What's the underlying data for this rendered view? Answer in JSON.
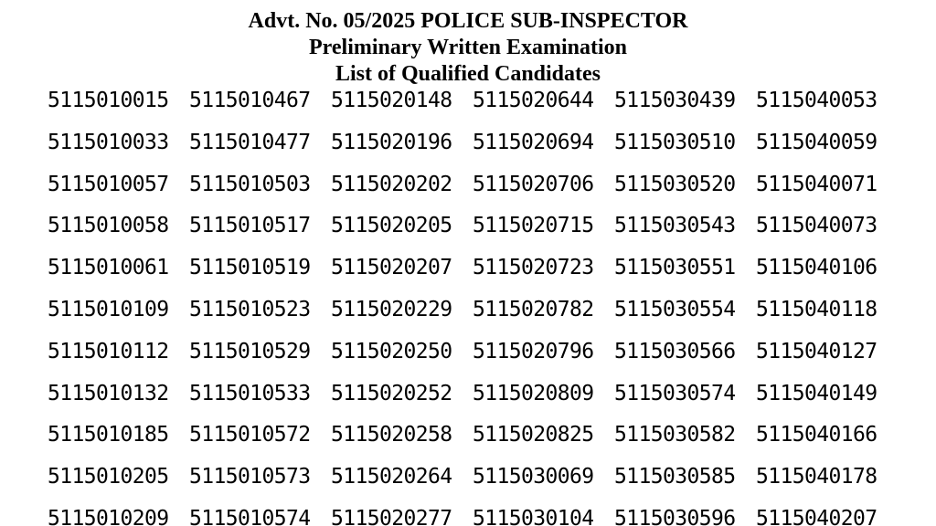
{
  "document": {
    "title_line1": "Advt. No. 05/2025 POLICE SUB-INSPECTOR",
    "title_line2": "Preliminary Written Examination",
    "title_line3": "List of Qualified Candidates",
    "text_color": "#000000",
    "background_color": "#ffffff"
  },
  "candidates": {
    "columns": 6,
    "rows": [
      [
        "5115010015",
        "5115010467",
        "5115020148",
        "5115020644",
        "5115030439",
        "5115040053"
      ],
      [
        "5115010033",
        "5115010477",
        "5115020196",
        "5115020694",
        "5115030510",
        "5115040059"
      ],
      [
        "5115010057",
        "5115010503",
        "5115020202",
        "5115020706",
        "5115030520",
        "5115040071"
      ],
      [
        "5115010058",
        "5115010517",
        "5115020205",
        "5115020715",
        "5115030543",
        "5115040073"
      ],
      [
        "5115010061",
        "5115010519",
        "5115020207",
        "5115020723",
        "5115030551",
        "5115040106"
      ],
      [
        "5115010109",
        "5115010523",
        "5115020229",
        "5115020782",
        "5115030554",
        "5115040118"
      ],
      [
        "5115010112",
        "5115010529",
        "5115020250",
        "5115020796",
        "5115030566",
        "5115040127"
      ],
      [
        "5115010132",
        "5115010533",
        "5115020252",
        "5115020809",
        "5115030574",
        "5115040149"
      ],
      [
        "5115010185",
        "5115010572",
        "5115020258",
        "5115020825",
        "5115030582",
        "5115040166"
      ],
      [
        "5115010205",
        "5115010573",
        "5115020264",
        "5115030069",
        "5115030585",
        "5115040178"
      ],
      [
        "5115010209",
        "5115010574",
        "5115020277",
        "5115030104",
        "5115030596",
        "5115040207"
      ]
    ]
  }
}
